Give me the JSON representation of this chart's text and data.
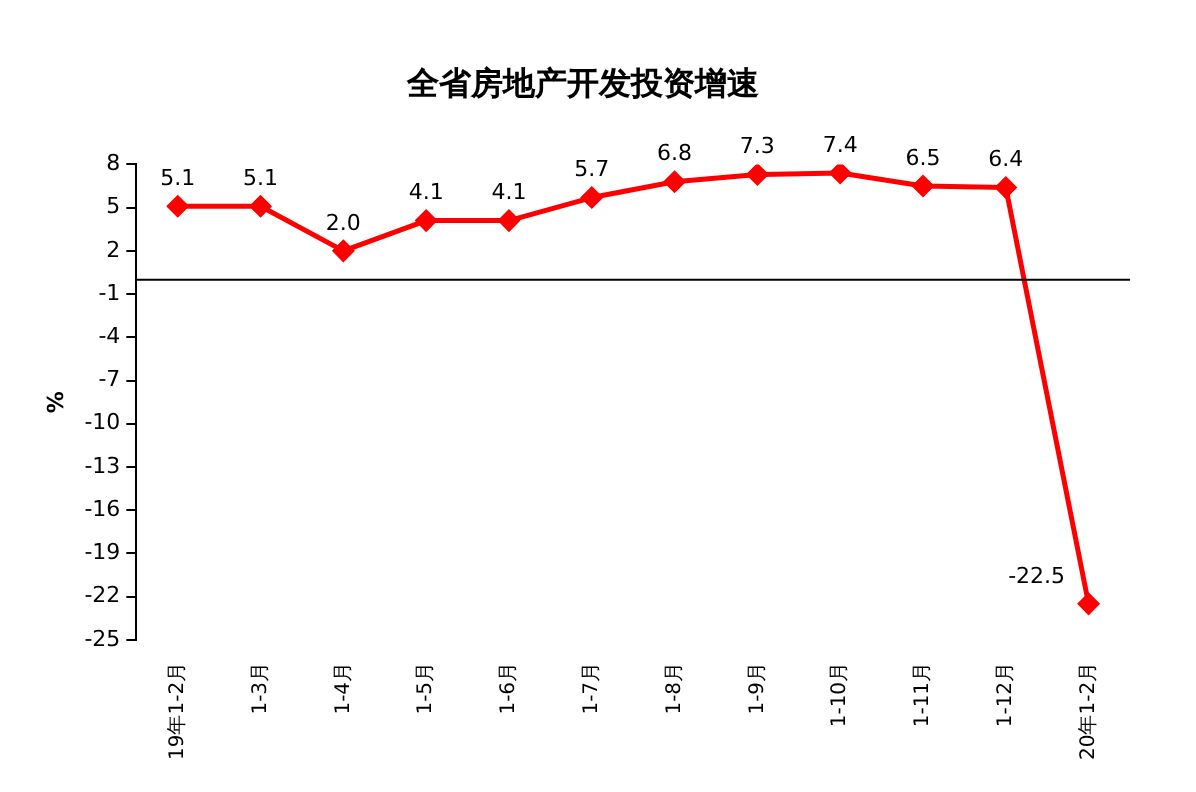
{
  "chart_data": {
    "type": "line",
    "title": "全省房地产开发投资增速",
    "ylabel": "%",
    "categories": [
      "19年1-2月",
      "1-3月",
      "1-4月",
      "1-5月",
      "1-6月",
      "1-7月",
      "1-8月",
      "1-9月",
      "1-10月",
      "1-11月",
      "1-12月",
      "20年1-2月"
    ],
    "series": [
      {
        "color": "#ff0000",
        "values": [
          5.1,
          5.1,
          2.0,
          4.1,
          4.1,
          5.7,
          6.8,
          7.3,
          7.4,
          6.5,
          6.4,
          -22.5
        ]
      }
    ],
    "value_labels": [
      "5.1",
      "5.1",
      "2.0",
      "4.1",
      "4.1",
      "5.7",
      "6.8",
      "7.3",
      "7.4",
      "6.5",
      "6.4",
      "-22.5"
    ],
    "ylim": [
      -25,
      8
    ],
    "yticks": [
      8,
      5,
      2,
      -1,
      -4,
      -7,
      -10,
      -13,
      -16,
      -19,
      -22,
      -25
    ],
    "ref_lines": [
      {
        "axis": "y",
        "value": 0,
        "color": "#000000"
      }
    ],
    "grid": false,
    "legend": false,
    "marker": "diamond",
    "line_style": "solid"
  }
}
